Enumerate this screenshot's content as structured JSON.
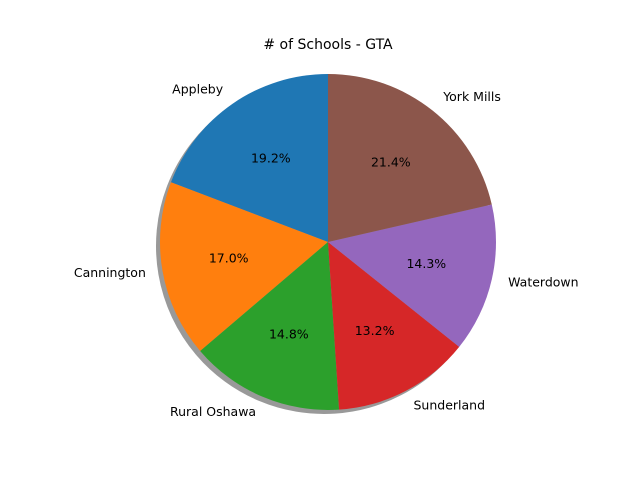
{
  "chart_data": {
    "type": "pie",
    "title": "# of Schools - GTA",
    "categories": [
      "Appleby",
      "Cannington",
      "Rural Oshawa",
      "Sunderland",
      "Waterdown",
      "York Mills"
    ],
    "values": [
      19.2,
      17.0,
      14.8,
      13.2,
      14.3,
      21.4
    ],
    "value_labels": [
      "19.2%",
      "17.0%",
      "14.8%",
      "13.2%",
      "14.3%",
      "21.4%"
    ],
    "colors": [
      "#1f77b4",
      "#ff7f0e",
      "#2ca02c",
      "#d62728",
      "#9467bd",
      "#8c564b"
    ],
    "start_angle_deg": 90,
    "direction": "counterclockwise",
    "shadow": true,
    "legend": "none"
  }
}
